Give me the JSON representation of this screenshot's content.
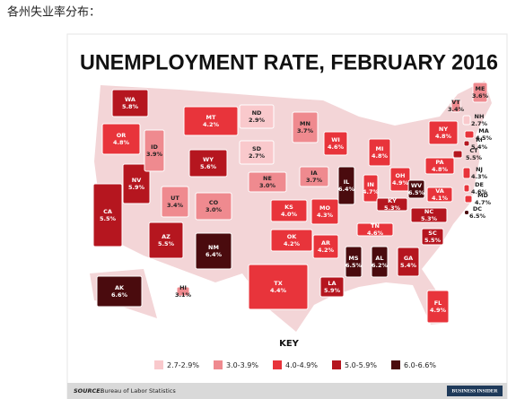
{
  "header": "各州失业率分布：",
  "title": "UNEMPLOYMENT RATE, FEBRUARY 2016",
  "states": [
    {
      "abbr": "WA",
      "rate": 5.8,
      "rate_label": "5.8%",
      "color": "#b5161f"
    },
    {
      "abbr": "OR",
      "rate": 4.8,
      "rate_label": "4.8%",
      "color": "#e8343b"
    },
    {
      "abbr": "CA",
      "rate": 5.5,
      "rate_label": "5.5%",
      "color": "#b5161f"
    },
    {
      "abbr": "NV",
      "rate": 5.9,
      "rate_label": "5.9%",
      "color": "#b5161f"
    },
    {
      "abbr": "ID",
      "rate": 3.9,
      "rate_label": "3.9%",
      "color": "#ef8a8f"
    },
    {
      "abbr": "MT",
      "rate": 4.2,
      "rate_label": "4.2%",
      "color": "#e8343b"
    },
    {
      "abbr": "WY",
      "rate": 5.6,
      "rate_label": "5.6%",
      "color": "#b5161f"
    },
    {
      "abbr": "UT",
      "rate": 3.4,
      "rate_label": "3.4%",
      "color": "#ef8a8f"
    },
    {
      "abbr": "CO",
      "rate": 3.0,
      "rate_label": "3.0%",
      "color": "#ef8a8f"
    },
    {
      "abbr": "AZ",
      "rate": 5.5,
      "rate_label": "5.5%",
      "color": "#b5161f"
    },
    {
      "abbr": "NM",
      "rate": 6.4,
      "rate_label": "6.4%",
      "color": "#4a0b0e"
    },
    {
      "abbr": "ND",
      "rate": 2.9,
      "rate_label": "2.9%",
      "color": "#f9c9cc"
    },
    {
      "abbr": "SD",
      "rate": 2.7,
      "rate_label": "2.7%",
      "color": "#f9c9cc"
    },
    {
      "abbr": "NE",
      "rate": 3.0,
      "rate_label": "3.0%",
      "color": "#ef8a8f"
    },
    {
      "abbr": "KS",
      "rate": 4.0,
      "rate_label": "4.0%",
      "color": "#e8343b"
    },
    {
      "abbr": "OK",
      "rate": 4.2,
      "rate_label": "4.2%",
      "color": "#e8343b"
    },
    {
      "abbr": "TX",
      "rate": 4.4,
      "rate_label": "4.4%",
      "color": "#e8343b"
    },
    {
      "abbr": "MN",
      "rate": 3.7,
      "rate_label": "3.7%",
      "color": "#ef8a8f"
    },
    {
      "abbr": "IA",
      "rate": 3.7,
      "rate_label": "3.7%",
      "color": "#ef8a8f"
    },
    {
      "abbr": "MO",
      "rate": 4.3,
      "rate_label": "4.3%",
      "color": "#e8343b"
    },
    {
      "abbr": "AR",
      "rate": 4.2,
      "rate_label": "4.2%",
      "color": "#e8343b"
    },
    {
      "abbr": "LA",
      "rate": 5.9,
      "rate_label": "5.9%",
      "color": "#b5161f"
    },
    {
      "abbr": "WI",
      "rate": 4.6,
      "rate_label": "4.6%",
      "color": "#e8343b"
    },
    {
      "abbr": "IL",
      "rate": 6.4,
      "rate_label": "6.4%",
      "color": "#4a0b0e"
    },
    {
      "abbr": "MI",
      "rate": 4.8,
      "rate_label": "4.8%",
      "color": "#e8343b"
    },
    {
      "abbr": "IN",
      "rate": 4.7,
      "rate_label": "4.7%",
      "color": "#e8343b"
    },
    {
      "abbr": "OH",
      "rate": 4.9,
      "rate_label": "4.9%",
      "color": "#e8343b"
    },
    {
      "abbr": "KY",
      "rate": 5.3,
      "rate_label": "5.3%",
      "color": "#b5161f"
    },
    {
      "abbr": "TN",
      "rate": 4.6,
      "rate_label": "4.6%",
      "color": "#e8343b"
    },
    {
      "abbr": "MS",
      "rate": 6.5,
      "rate_label": "6.5%",
      "color": "#4a0b0e"
    },
    {
      "abbr": "AL",
      "rate": 6.2,
      "rate_label": "6.2%",
      "color": "#4a0b0e"
    },
    {
      "abbr": "GA",
      "rate": 5.4,
      "rate_label": "5.4%",
      "color": "#b5161f"
    },
    {
      "abbr": "FL",
      "rate": 4.9,
      "rate_label": "4.9%",
      "color": "#e8343b"
    },
    {
      "abbr": "SC",
      "rate": 5.5,
      "rate_label": "5.5%",
      "color": "#b5161f"
    },
    {
      "abbr": "NC",
      "rate": 5.3,
      "rate_label": "5.3%",
      "color": "#b5161f"
    },
    {
      "abbr": "VA",
      "rate": 4.1,
      "rate_label": "4.1%",
      "color": "#e8343b"
    },
    {
      "abbr": "WV",
      "rate": 6.5,
      "rate_label": "6.5%",
      "color": "#4a0b0e"
    },
    {
      "abbr": "PA",
      "rate": 4.8,
      "rate_label": "4.8%",
      "color": "#e8343b"
    },
    {
      "abbr": "NY",
      "rate": 4.8,
      "rate_label": "4.8%",
      "color": "#e8343b"
    },
    {
      "abbr": "VT",
      "rate": 3.4,
      "rate_label": "3.4%",
      "color": "#ef8a8f"
    },
    {
      "abbr": "NH",
      "rate": 2.7,
      "rate_label": "2.7%",
      "color": "#f9c9cc"
    },
    {
      "abbr": "ME",
      "rate": 3.6,
      "rate_label": "3.6%",
      "color": "#ef8a8f"
    },
    {
      "abbr": "MA",
      "rate": 4.5,
      "rate_label": "4.5%",
      "color": "#e8343b"
    },
    {
      "abbr": "RI",
      "rate": 5.4,
      "rate_label": "5.4%",
      "color": "#b5161f"
    },
    {
      "abbr": "CT",
      "rate": 5.5,
      "rate_label": "5.5%",
      "color": "#b5161f"
    },
    {
      "abbr": "NJ",
      "rate": 4.3,
      "rate_label": "4.3%",
      "color": "#e8343b"
    },
    {
      "abbr": "DE",
      "rate": 4.6,
      "rate_label": "4.6%",
      "color": "#e8343b"
    },
    {
      "abbr": "MD",
      "rate": 4.7,
      "rate_label": "4.7%",
      "color": "#e8343b"
    },
    {
      "abbr": "DC",
      "rate": 6.5,
      "rate_label": "6.5%",
      "color": "#4a0b0e"
    },
    {
      "abbr": "AK",
      "rate": 6.6,
      "rate_label": "6.6%",
      "color": "#4a0b0e"
    },
    {
      "abbr": "HI",
      "rate": 3.1,
      "rate_label": "3.1%",
      "color": "#ef8a8f"
    }
  ],
  "key": {
    "title": "KEY",
    "items": [
      {
        "label": "2.7-2.9%",
        "color": "#f9c9cc"
      },
      {
        "label": "3.0-3.9%",
        "color": "#ef8a8f"
      },
      {
        "label": "4.0-4.9%",
        "color": "#e8343b"
      },
      {
        "label": "5.0-5.9%",
        "color": "#b5161f"
      },
      {
        "label": "6.0-6.6%",
        "color": "#4a0b0e"
      }
    ]
  },
  "source_label": "SOURCE:",
  "source": "Bureau of Labor Statistics",
  "brand": "BUSINESS INSIDER"
}
